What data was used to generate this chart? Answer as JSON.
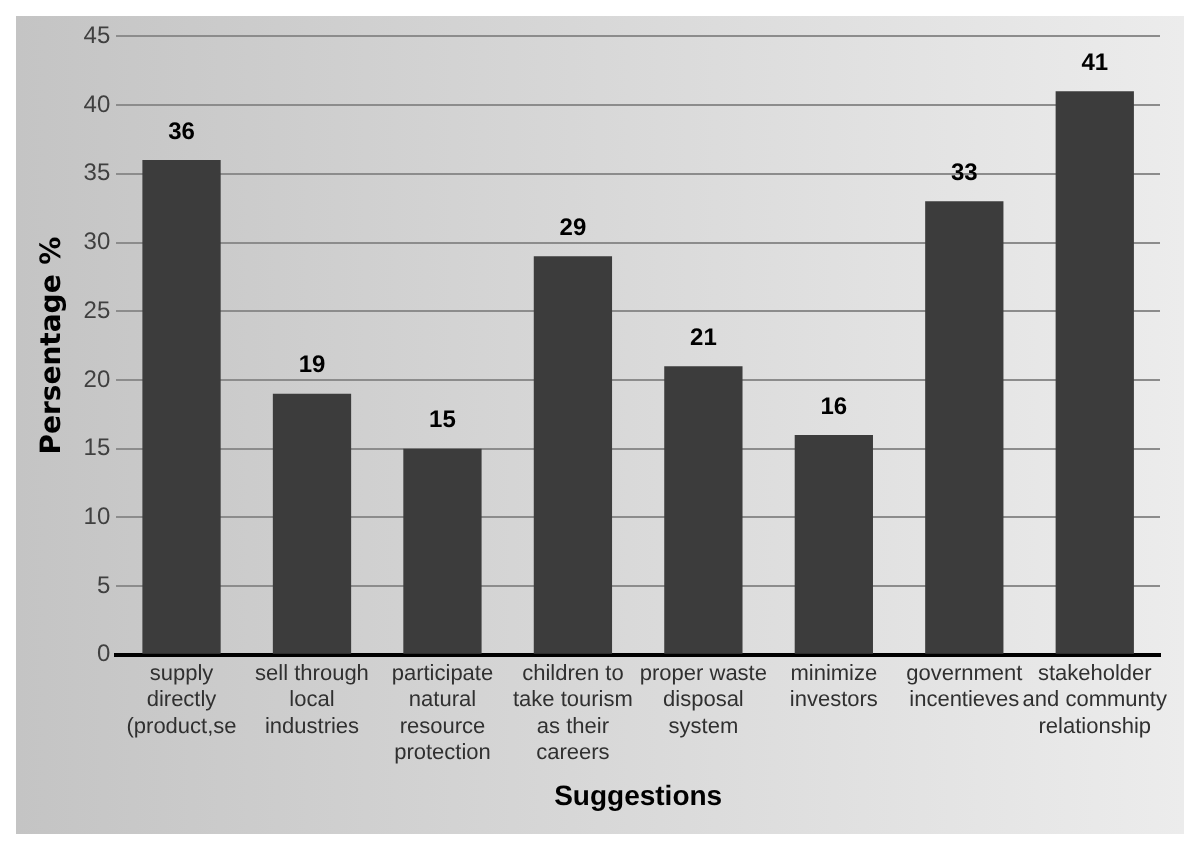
{
  "chart_data": {
    "type": "bar",
    "xlabel": "Suggestions",
    "ylabel": "Persentage %",
    "categories": [
      "supply directly (product,se",
      "sell through local industries",
      "participate natural resource protection",
      "children to take tourism as their careers",
      "proper waste disposal system",
      "minimize investors",
      "government incentieves",
      "stakeholder and communty relationship"
    ],
    "values": [
      36,
      19,
      15,
      29,
      21,
      16,
      33,
      41
    ],
    "color": "#3c3c3c",
    "ylim": [
      0,
      45
    ],
    "yticks": [
      0,
      5,
      10,
      15,
      20,
      25,
      30,
      35,
      40,
      45
    ],
    "grid": "y",
    "data_labels": true,
    "legend": false
  }
}
